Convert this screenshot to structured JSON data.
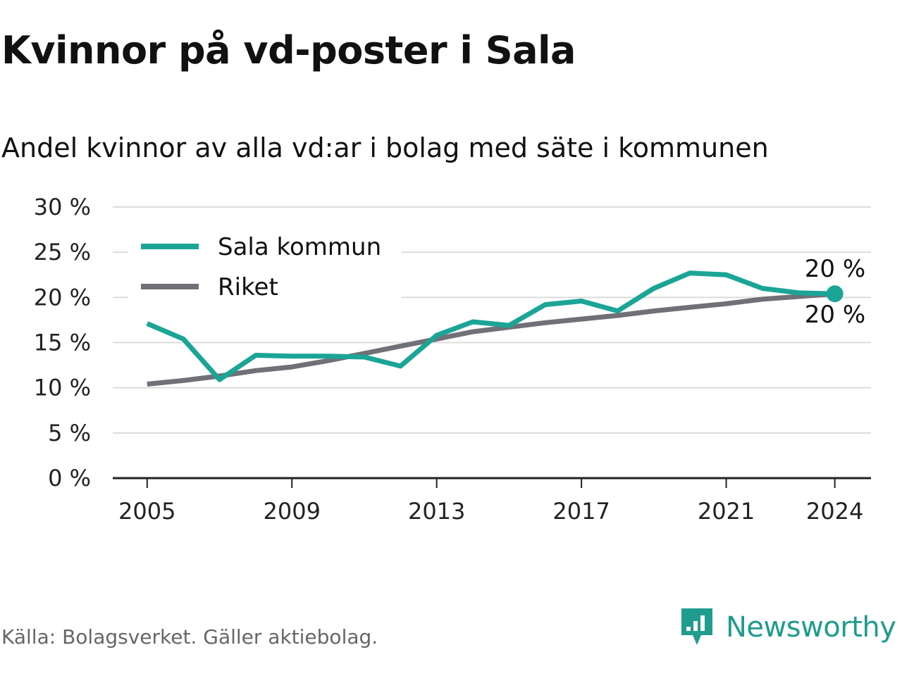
{
  "header": {
    "title": "Kvinnor på vd-poster i Sala",
    "subtitle": "Andel kvinnor av alla vd:ar i bolag med säte i kommunen"
  },
  "footer": {
    "source": "Källa: Bolagsverket. Gäller aktiebolag.",
    "brand": "Newsworthy",
    "brand_icon": "newsworthy-logo-icon"
  },
  "colors": {
    "sala": "#1aa596",
    "riket": "#716f77",
    "grid": "#dcdcdc",
    "axis": "#222222",
    "brand": "#1f9c8d"
  },
  "chart_data": {
    "type": "line",
    "title": "Kvinnor på vd-poster i Sala",
    "subtitle": "Andel kvinnor av alla vd:ar i bolag med säte i kommunen",
    "xlabel": "",
    "ylabel": "",
    "x": [
      2005,
      2006,
      2007,
      2008,
      2009,
      2010,
      2011,
      2012,
      2013,
      2014,
      2015,
      2016,
      2017,
      2018,
      2019,
      2020,
      2021,
      2022,
      2023,
      2024
    ],
    "x_ticks": [
      2005,
      2009,
      2013,
      2017,
      2021,
      2024
    ],
    "x_tick_labels": [
      "2005",
      "2009",
      "2013",
      "2017",
      "2021",
      "2024"
    ],
    "ylim": [
      0,
      30
    ],
    "y_ticks": [
      0,
      5,
      10,
      15,
      20,
      25,
      30
    ],
    "y_tick_labels": [
      "0 %",
      "5 %",
      "10 %",
      "15 %",
      "20 %",
      "25 %",
      "30 %"
    ],
    "grid": true,
    "legend_position": "top-left",
    "series": [
      {
        "name": "Sala kommun",
        "color": "#1aa596",
        "values": [
          17.1,
          15.4,
          10.9,
          13.6,
          13.5,
          13.5,
          13.4,
          12.4,
          15.8,
          17.3,
          16.9,
          19.2,
          19.6,
          18.5,
          21.0,
          22.7,
          22.5,
          21.0,
          20.5,
          20.4
        ],
        "end_label": "20 %"
      },
      {
        "name": "Riket",
        "color": "#716f77",
        "values": [
          10.4,
          10.8,
          11.3,
          11.9,
          12.3,
          13.0,
          13.8,
          14.6,
          15.4,
          16.2,
          16.7,
          17.2,
          17.6,
          18.0,
          18.5,
          18.9,
          19.3,
          19.8,
          20.1,
          20.4
        ],
        "end_label": "20 %"
      }
    ]
  }
}
